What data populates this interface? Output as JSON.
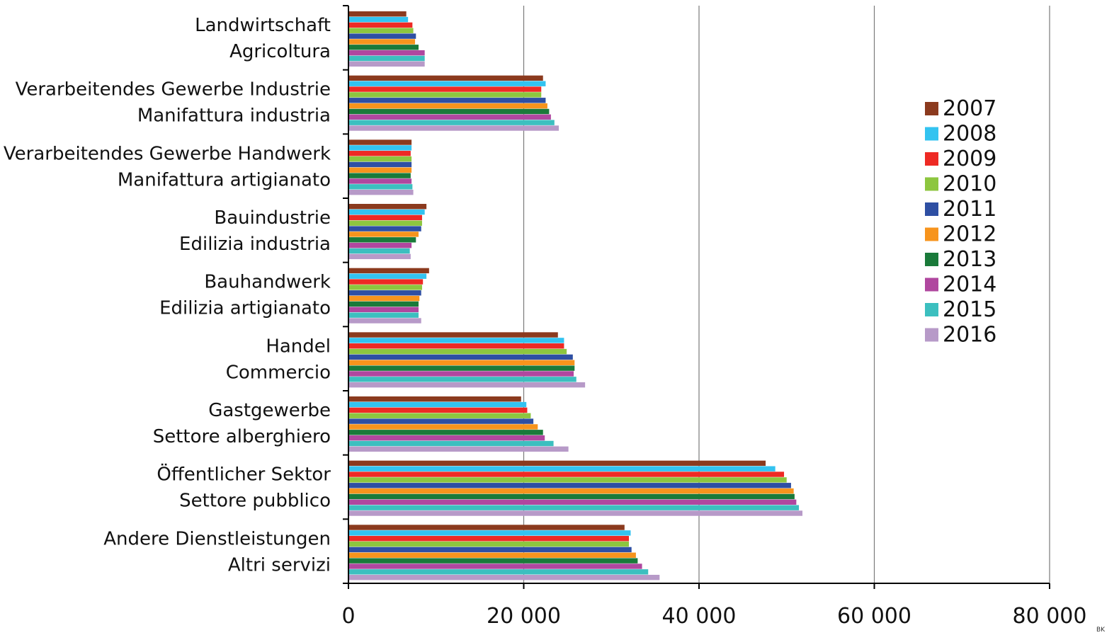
{
  "chart_data": {
    "type": "bar",
    "orientation": "horizontal",
    "title": "",
    "xlabel": "",
    "ylabel": "",
    "xlim": [
      0,
      80000
    ],
    "x_ticks": [
      0,
      20000,
      40000,
      60000,
      80000
    ],
    "x_tick_labels": [
      "0",
      "20 000",
      "40 000",
      "60 000",
      "80 000"
    ],
    "grid": "vertical",
    "legend_position": "right",
    "categories": [
      {
        "line1": "Landwirtschaft",
        "line2": "Agricoltura"
      },
      {
        "line1": "Verarbeitendes Gewerbe Industrie",
        "line2": "Manifattura industria"
      },
      {
        "line1": "Verarbeitendes Gewerbe Handwerk",
        "line2": "Manifattura artigianato"
      },
      {
        "line1": "Bauindustrie",
        "line2": "Edilizia industria"
      },
      {
        "line1": "Bauhandwerk",
        "line2": "Edilizia artigianato"
      },
      {
        "line1": "Handel",
        "line2": "Commercio"
      },
      {
        "line1": "Gastgewerbe",
        "line2": "Settore alberghiero"
      },
      {
        "line1": "Öffentlicher Sektor",
        "line2": "Settore pubblico"
      },
      {
        "line1": "Andere Dienstleistungen",
        "line2": "Altri servizi"
      }
    ],
    "series": [
      {
        "name": "2007",
        "color": "#8b3a1e",
        "values": [
          6600,
          22200,
          7200,
          8900,
          9200,
          23900,
          19700,
          47600,
          31500
        ]
      },
      {
        "name": "2008",
        "color": "#33c3f0",
        "values": [
          6800,
          22500,
          7200,
          8700,
          8900,
          24600,
          20300,
          48700,
          32200
        ]
      },
      {
        "name": "2009",
        "color": "#ee2a24",
        "values": [
          7300,
          22000,
          7100,
          8400,
          8500,
          24600,
          20400,
          49700,
          32000
        ]
      },
      {
        "name": "2010",
        "color": "#8dc63f",
        "values": [
          7400,
          22000,
          7200,
          8400,
          8400,
          24900,
          20800,
          50000,
          32000
        ]
      },
      {
        "name": "2011",
        "color": "#2e4fa3",
        "values": [
          7700,
          22500,
          7200,
          8300,
          8300,
          25600,
          21100,
          50500,
          32300
        ]
      },
      {
        "name": "2012",
        "color": "#f7941d",
        "values": [
          7600,
          22700,
          7200,
          8000,
          8100,
          25800,
          21600,
          50800,
          32800
        ]
      },
      {
        "name": "2013",
        "color": "#1a7a3a",
        "values": [
          8000,
          22900,
          7100,
          7700,
          8000,
          25800,
          22200,
          50900,
          33000
        ]
      },
      {
        "name": "2014",
        "color": "#b0479f",
        "values": [
          8700,
          23100,
          7200,
          7200,
          8000,
          25700,
          22400,
          51100,
          33500
        ]
      },
      {
        "name": "2015",
        "color": "#3cbfbf",
        "values": [
          8700,
          23500,
          7300,
          7000,
          8000,
          26000,
          23400,
          51400,
          34200
        ]
      },
      {
        "name": "2016",
        "color": "#b79ac8",
        "values": [
          8700,
          24000,
          7400,
          7100,
          8300,
          27000,
          25100,
          51800,
          35500
        ]
      }
    ],
    "corner_note": "BK"
  }
}
